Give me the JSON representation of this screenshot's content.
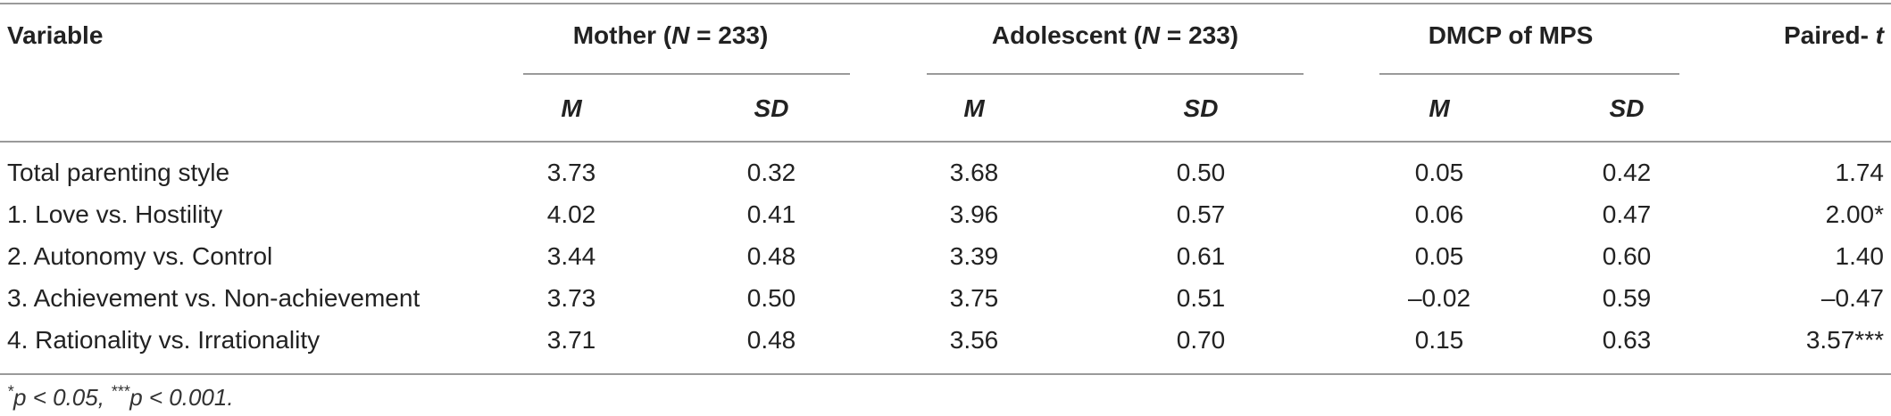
{
  "header": {
    "variable": "Variable",
    "mother": {
      "pre": "Mother (",
      "n": "N",
      "post": " = 233)"
    },
    "adolescent": {
      "pre": "Adolescent (",
      "n": "N",
      "post": " = 233)"
    },
    "dmcp": "DMCP of MPS",
    "paired": {
      "pre": "Paired- ",
      "t": "t"
    },
    "sub": {
      "m": "M",
      "sd": "SD"
    }
  },
  "rows": [
    {
      "label": "Total parenting style",
      "mother_m": "3.73",
      "mother_sd": "0.32",
      "adol_m": "3.68",
      "adol_sd": "0.50",
      "dmcp_m": "0.05",
      "dmcp_sd": "0.42",
      "t": "1.74"
    },
    {
      "label": "1. Love vs. Hostility",
      "mother_m": "4.02",
      "mother_sd": "0.41",
      "adol_m": "3.96",
      "adol_sd": "0.57",
      "dmcp_m": "0.06",
      "dmcp_sd": "0.47",
      "t": "2.00*"
    },
    {
      "label": "2. Autonomy vs. Control",
      "mother_m": "3.44",
      "mother_sd": "0.48",
      "adol_m": "3.39",
      "adol_sd": "0.61",
      "dmcp_m": "0.05",
      "dmcp_sd": "0.60",
      "t": "1.40"
    },
    {
      "label": "3. Achievement vs. Non-achievement",
      "mother_m": "3.73",
      "mother_sd": "0.50",
      "adol_m": "3.75",
      "adol_sd": "0.51",
      "dmcp_m": "–0.02",
      "dmcp_sd": "0.59",
      "t": "–0.47"
    },
    {
      "label": "4. Rationality vs. Irrationality",
      "mother_m": "3.71",
      "mother_sd": "0.48",
      "adol_m": "3.56",
      "adol_sd": "0.70",
      "dmcp_m": "0.15",
      "dmcp_sd": "0.63",
      "t": "3.57***"
    }
  ],
  "footnote": {
    "star1": "*",
    "p1": "p < 0.05, ",
    "star3": "***",
    "p3": "p < 0.001."
  }
}
